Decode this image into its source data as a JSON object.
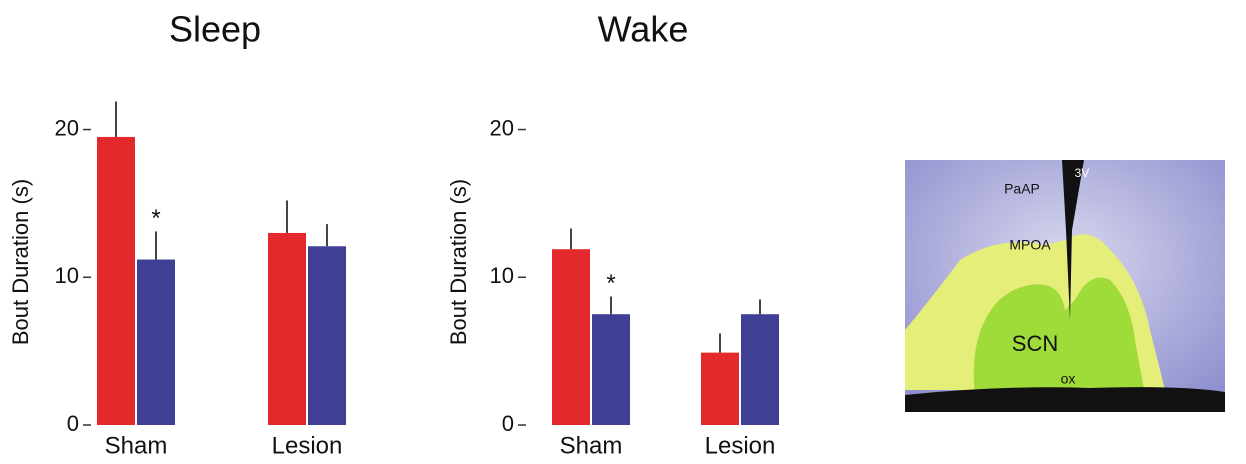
{
  "chart_data": [
    {
      "type": "bar",
      "title": "Sleep",
      "y_label": "Bout Duration (s)",
      "categories": [
        "Sham",
        "Lesion"
      ],
      "series": [
        {
          "color": "#e3292b",
          "values": [
            19.5,
            13.0
          ],
          "errors": [
            2.4,
            2.2
          ]
        },
        {
          "color": "#3f3f95",
          "values": [
            11.2,
            12.1
          ],
          "errors": [
            1.9,
            1.5
          ]
        }
      ],
      "annotations": [
        "*"
      ],
      "ylim": [
        0,
        22
      ],
      "yticks": [
        0,
        10,
        20
      ]
    },
    {
      "type": "bar",
      "title": "Wake",
      "y_label": "Bout Duration (s)",
      "categories": [
        "Sham",
        "Lesion"
      ],
      "series": [
        {
          "color": "#e3292b",
          "values": [
            11.9,
            4.9
          ],
          "errors": [
            1.4,
            1.3
          ]
        },
        {
          "color": "#3f3f95",
          "values": [
            7.5,
            7.5
          ],
          "errors": [
            1.2,
            1.0
          ]
        }
      ],
      "annotations": [
        "*"
      ],
      "ylim": [
        0,
        22
      ],
      "yticks": [
        0,
        10,
        20
      ]
    }
  ],
  "image": {
    "labels": [
      "PaAP",
      "3V",
      "MPOA",
      "SCN",
      "ox"
    ]
  }
}
